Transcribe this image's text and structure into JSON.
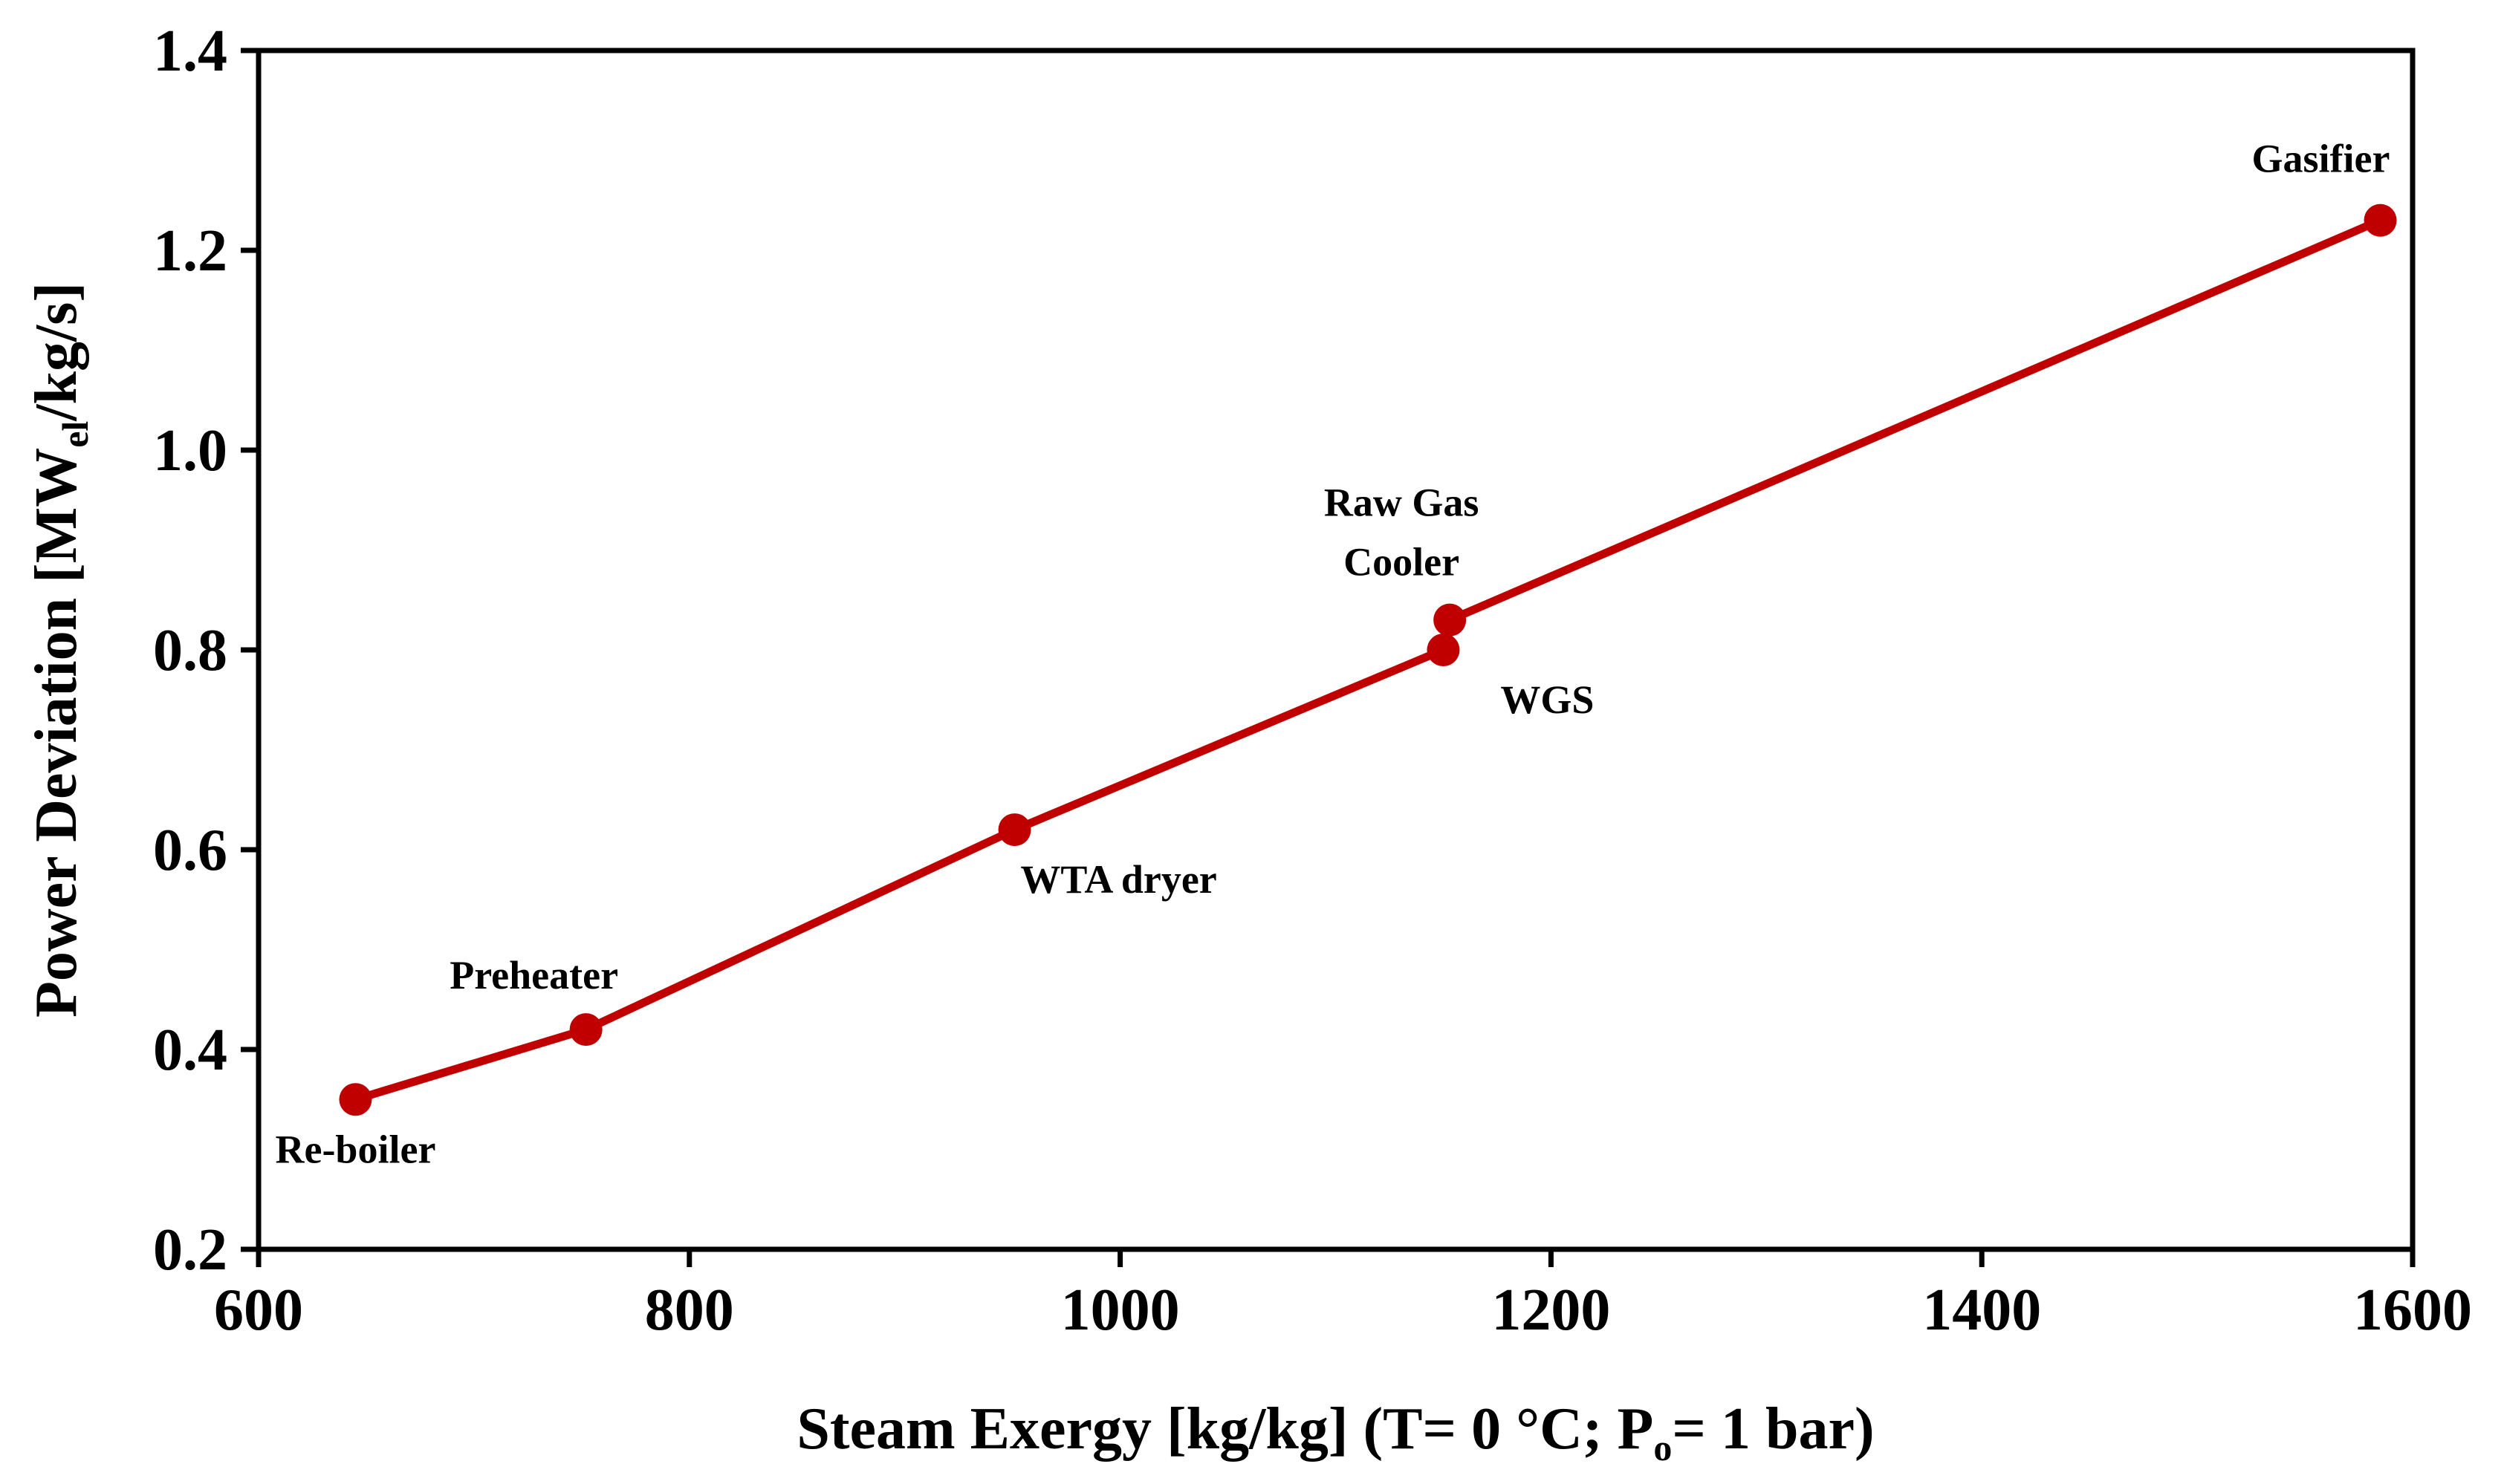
{
  "chart_data": {
    "type": "line",
    "x_axis": {
      "title_parts": [
        "Steam Exergy [kg/kg] (T= 0 °C; P",
        "o",
        "= 1 bar)"
      ],
      "range": [
        600,
        1600
      ],
      "ticks": [
        600,
        800,
        1000,
        1200,
        1400,
        1600
      ],
      "tick_labels": [
        "600",
        "800",
        "1000",
        "1200",
        "1400",
        "1600"
      ]
    },
    "y_axis": {
      "title_parts": [
        "Power Deviation [MW",
        "el",
        "/kg/s]"
      ],
      "range": [
        0.2,
        1.4
      ],
      "ticks": [
        0.2,
        0.4,
        0.6,
        0.8,
        1.0,
        1.2,
        1.4
      ],
      "tick_labels": [
        "0.2",
        "0.4",
        "0.6",
        "0.8",
        "1.0",
        "1.2",
        "1.4"
      ]
    },
    "series": [
      {
        "name": "Power deviation",
        "color": "#c00000",
        "points": [
          {
            "x": 645,
            "y": 0.35,
            "label": [
              "Re-boiler"
            ],
            "label_pos": "below"
          },
          {
            "x": 752,
            "y": 0.42,
            "label": [
              "Preheater"
            ],
            "label_pos": "above"
          },
          {
            "x": 951,
            "y": 0.62,
            "label": [
              "WTA dryer"
            ],
            "label_pos": "below-right"
          },
          {
            "x": 1150,
            "y": 0.8,
            "label": [
              "WGS"
            ],
            "label_pos": "below-right"
          },
          {
            "x": 1153,
            "y": 0.83,
            "label": [
              "Raw Gas",
              "Cooler"
            ],
            "label_pos": "above-left"
          },
          {
            "x": 1585,
            "y": 1.23,
            "label": [
              "Gasifier"
            ],
            "label_pos": "above"
          }
        ]
      }
    ]
  }
}
